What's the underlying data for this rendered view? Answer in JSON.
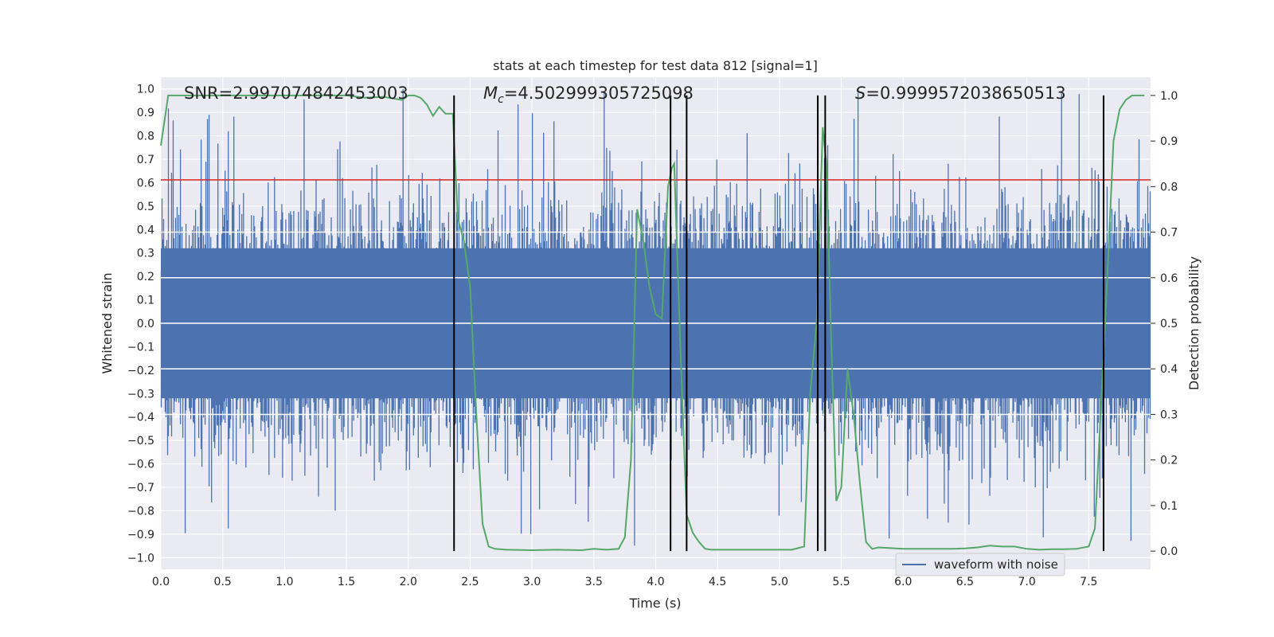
{
  "chart_data": {
    "type": "line",
    "title": "stats at each timestep for test data 812 [signal=1]",
    "xlabel": "Time (s)",
    "ylabel_left": "Whitened strain",
    "ylabel_right": "Detection probability",
    "xlim": [
      0,
      8.0
    ],
    "ylim_left": [
      -1.05,
      1.05
    ],
    "ylim_right": [
      -0.04,
      1.04
    ],
    "x_ticks": [
      "0.0",
      "0.5",
      "1.0",
      "1.5",
      "2.0",
      "2.5",
      "3.0",
      "3.5",
      "4.0",
      "4.5",
      "5.0",
      "5.5",
      "6.0",
      "6.5",
      "7.0",
      "7.5"
    ],
    "left_ticks": [
      "1.0",
      "0.9",
      "0.8",
      "0.7",
      "0.6",
      "0.5",
      "0.4",
      "0.3",
      "0.2",
      "0.1",
      "0.0",
      "−0.1",
      "−0.2",
      "−0.3",
      "−0.4",
      "−0.5",
      "−0.6",
      "−0.7",
      "−0.8",
      "−0.9",
      "−1.0"
    ],
    "right_ticks": [
      "1.0",
      "0.9",
      "0.8",
      "0.7",
      "0.6",
      "0.5",
      "0.4",
      "0.3",
      "0.2",
      "0.1",
      "0.0"
    ],
    "grid": true,
    "legend_position": "lower-right",
    "annotations": {
      "snr": "SNR=2.997074842453003",
      "mc_symbol": "M",
      "mc_sub": "c",
      "mc_value": "=4.502999305725098",
      "s_symbol": "S",
      "s_value": "=0.9999572038650513"
    },
    "series": [
      {
        "name": "waveform with noise",
        "axis": "left",
        "color": "#4c72b0",
        "description_envelope": {
          "typical_amplitude": 0.35,
          "max_positive": 1.0,
          "min_negative": -0.95
        }
      },
      {
        "axis": "right",
        "color": "#55a868",
        "x": [
          0.0,
          0.06,
          0.3,
          0.6,
          0.9,
          1.2,
          1.5,
          1.65,
          1.8,
          1.95,
          2.0,
          2.05,
          2.1,
          2.15,
          2.2,
          2.25,
          2.3,
          2.36,
          2.4,
          2.45,
          2.5,
          2.55,
          2.6,
          2.65,
          2.7,
          2.8,
          3.0,
          3.2,
          3.4,
          3.5,
          3.6,
          3.7,
          3.75,
          3.8,
          3.85,
          3.9,
          3.95,
          4.0,
          4.05,
          4.1,
          4.13,
          4.15,
          4.2,
          4.25,
          4.3,
          4.35,
          4.4,
          4.45,
          4.5,
          4.55,
          4.6,
          4.7,
          4.8,
          5.0,
          5.1,
          5.2,
          5.25,
          5.3,
          5.35,
          5.38,
          5.42,
          5.46,
          5.5,
          5.55,
          5.6,
          5.65,
          5.7,
          5.75,
          5.8,
          6.0,
          6.2,
          6.4,
          6.5,
          6.6,
          6.7,
          6.8,
          6.9,
          7.0,
          7.1,
          7.2,
          7.3,
          7.4,
          7.5,
          7.55,
          7.6,
          7.65,
          7.7,
          7.75,
          7.8,
          7.85,
          7.9,
          7.95
        ],
        "y": [
          0.89,
          1.0,
          1.0,
          1.0,
          1.0,
          1.0,
          1.0,
          0.995,
          0.997,
          0.99,
          1.0,
          1.0,
          0.995,
          0.98,
          0.955,
          0.975,
          0.96,
          0.96,
          0.73,
          0.68,
          0.58,
          0.3,
          0.06,
          0.01,
          0.005,
          0.003,
          0.002,
          0.003,
          0.002,
          0.005,
          0.003,
          0.005,
          0.03,
          0.2,
          0.75,
          0.68,
          0.58,
          0.52,
          0.51,
          0.8,
          0.84,
          0.85,
          0.44,
          0.08,
          0.04,
          0.02,
          0.005,
          0.003,
          0.003,
          0.003,
          0.003,
          0.003,
          0.003,
          0.003,
          0.003,
          0.01,
          0.35,
          0.5,
          0.93,
          0.85,
          0.45,
          0.11,
          0.14,
          0.4,
          0.3,
          0.15,
          0.02,
          0.005,
          0.008,
          0.005,
          0.005,
          0.005,
          0.006,
          0.008,
          0.012,
          0.01,
          0.01,
          0.005,
          0.003,
          0.004,
          0.004,
          0.005,
          0.01,
          0.05,
          0.32,
          0.6,
          0.9,
          0.97,
          0.99,
          1.0,
          1.0,
          1.0
        ]
      }
    ],
    "threshold_line": {
      "color": "#d62728",
      "y_left": 0.612
    },
    "vertical_lines_x": [
      2.37,
      4.12,
      4.25,
      5.31,
      5.37,
      7.62
    ]
  },
  "legend": {
    "label": "waveform with noise"
  }
}
